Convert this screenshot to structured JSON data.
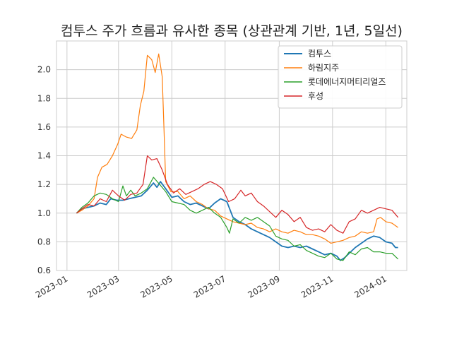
{
  "chart_data": {
    "type": "line",
    "title": "컴투스 주가 흐름과 유사한 종목 (상관관계 기반, 1년, 5일선)",
    "xlabel": "",
    "ylabel": "",
    "x_domain": [
      "2022-12-20",
      "2024-01-25"
    ],
    "ylim": [
      0.6,
      2.2
    ],
    "yticks": [
      0.6,
      0.8,
      1.0,
      1.2,
      1.4,
      1.6,
      1.8,
      2.0
    ],
    "ytick_labels": [
      "0.6",
      "0.8",
      "1.0",
      "1.2",
      "1.4",
      "1.6",
      "1.8",
      "2.0"
    ],
    "xticks": [
      "2023-01-01",
      "2023-03-01",
      "2023-05-01",
      "2023-07-01",
      "2023-09-01",
      "2023-11-01",
      "2024-01-01"
    ],
    "xtick_labels": [
      "2023-01",
      "2023-03",
      "2023-05",
      "2023-07",
      "2023-09",
      "2023-11",
      "2024-01"
    ],
    "grid": true,
    "legend_position": "top-right",
    "series": [
      {
        "name": "컴투스",
        "color": "#1f77b4",
        "points": [
          [
            "2023-01-12",
            1.0
          ],
          [
            "2023-01-18",
            1.03
          ],
          [
            "2023-01-25",
            1.04
          ],
          [
            "2023-02-01",
            1.05
          ],
          [
            "2023-02-08",
            1.07
          ],
          [
            "2023-02-15",
            1.06
          ],
          [
            "2023-02-20",
            1.1
          ],
          [
            "2023-02-27",
            1.09
          ],
          [
            "2023-03-06",
            1.09
          ],
          [
            "2023-03-13",
            1.1
          ],
          [
            "2023-03-20",
            1.11
          ],
          [
            "2023-03-27",
            1.12
          ],
          [
            "2023-04-03",
            1.16
          ],
          [
            "2023-04-10",
            1.21
          ],
          [
            "2023-04-14",
            1.18
          ],
          [
            "2023-04-18",
            1.22
          ],
          [
            "2023-04-24",
            1.17
          ],
          [
            "2023-05-01",
            1.11
          ],
          [
            "2023-05-08",
            1.12
          ],
          [
            "2023-05-15",
            1.08
          ],
          [
            "2023-05-22",
            1.06
          ],
          [
            "2023-05-29",
            1.07
          ],
          [
            "2023-06-05",
            1.05
          ],
          [
            "2023-06-12",
            1.03
          ],
          [
            "2023-06-19",
            1.07
          ],
          [
            "2023-06-26",
            1.1
          ],
          [
            "2023-07-03",
            1.08
          ],
          [
            "2023-07-10",
            0.97
          ],
          [
            "2023-07-17",
            0.94
          ],
          [
            "2023-07-24",
            0.92
          ],
          [
            "2023-07-31",
            0.89
          ],
          [
            "2023-08-07",
            0.87
          ],
          [
            "2023-08-14",
            0.85
          ],
          [
            "2023-08-21",
            0.83
          ],
          [
            "2023-08-28",
            0.8
          ],
          [
            "2023-09-04",
            0.77
          ],
          [
            "2023-09-11",
            0.76
          ],
          [
            "2023-09-18",
            0.77
          ],
          [
            "2023-09-25",
            0.76
          ],
          [
            "2023-10-02",
            0.77
          ],
          [
            "2023-10-09",
            0.75
          ],
          [
            "2023-10-16",
            0.73
          ],
          [
            "2023-10-23",
            0.71
          ],
          [
            "2023-10-30",
            0.72
          ],
          [
            "2023-11-06",
            0.7
          ],
          [
            "2023-11-10",
            0.67
          ],
          [
            "2023-11-15",
            0.69
          ],
          [
            "2023-11-20",
            0.72
          ],
          [
            "2023-11-27",
            0.76
          ],
          [
            "2023-12-04",
            0.79
          ],
          [
            "2023-12-11",
            0.82
          ],
          [
            "2023-12-18",
            0.84
          ],
          [
            "2023-12-25",
            0.83
          ],
          [
            "2024-01-01",
            0.8
          ],
          [
            "2024-01-08",
            0.79
          ],
          [
            "2024-01-12",
            0.76
          ],
          [
            "2024-01-15",
            0.76
          ]
        ]
      },
      {
        "name": "하림지주",
        "color": "#ff7f0e",
        "points": [
          [
            "2023-01-12",
            1.0
          ],
          [
            "2023-01-18",
            1.02
          ],
          [
            "2023-01-25",
            1.05
          ],
          [
            "2023-02-01",
            1.1
          ],
          [
            "2023-02-05",
            1.25
          ],
          [
            "2023-02-10",
            1.32
          ],
          [
            "2023-02-16",
            1.34
          ],
          [
            "2023-02-22",
            1.4
          ],
          [
            "2023-02-28",
            1.48
          ],
          [
            "2023-03-04",
            1.55
          ],
          [
            "2023-03-10",
            1.53
          ],
          [
            "2023-03-16",
            1.52
          ],
          [
            "2023-03-22",
            1.58
          ],
          [
            "2023-03-26",
            1.75
          ],
          [
            "2023-03-30",
            1.85
          ],
          [
            "2023-04-03",
            2.1
          ],
          [
            "2023-04-08",
            2.07
          ],
          [
            "2023-04-12",
            1.98
          ],
          [
            "2023-04-16",
            2.11
          ],
          [
            "2023-04-20",
            1.95
          ],
          [
            "2023-04-22",
            1.6
          ],
          [
            "2023-04-24",
            1.22
          ],
          [
            "2023-04-30",
            1.15
          ],
          [
            "2023-05-08",
            1.15
          ],
          [
            "2023-05-15",
            1.1
          ],
          [
            "2023-05-22",
            1.12
          ],
          [
            "2023-05-29",
            1.08
          ],
          [
            "2023-06-05",
            1.06
          ],
          [
            "2023-06-12",
            1.03
          ],
          [
            "2023-06-19",
            1.02
          ],
          [
            "2023-06-26",
            0.98
          ],
          [
            "2023-07-03",
            0.96
          ],
          [
            "2023-07-10",
            0.94
          ],
          [
            "2023-07-17",
            0.93
          ],
          [
            "2023-07-24",
            0.92
          ],
          [
            "2023-07-31",
            0.93
          ],
          [
            "2023-08-07",
            0.9
          ],
          [
            "2023-08-14",
            0.89
          ],
          [
            "2023-08-21",
            0.87
          ],
          [
            "2023-08-28",
            0.89
          ],
          [
            "2023-09-04",
            0.87
          ],
          [
            "2023-09-11",
            0.86
          ],
          [
            "2023-09-18",
            0.88
          ],
          [
            "2023-09-25",
            0.87
          ],
          [
            "2023-10-02",
            0.85
          ],
          [
            "2023-10-09",
            0.85
          ],
          [
            "2023-10-16",
            0.84
          ],
          [
            "2023-10-23",
            0.82
          ],
          [
            "2023-10-30",
            0.79
          ],
          [
            "2023-11-06",
            0.8
          ],
          [
            "2023-11-13",
            0.81
          ],
          [
            "2023-11-20",
            0.83
          ],
          [
            "2023-11-27",
            0.84
          ],
          [
            "2023-12-04",
            0.87
          ],
          [
            "2023-12-11",
            0.86
          ],
          [
            "2023-12-18",
            0.87
          ],
          [
            "2023-12-22",
            0.96
          ],
          [
            "2023-12-26",
            0.97
          ],
          [
            "2024-01-01",
            0.94
          ],
          [
            "2024-01-08",
            0.93
          ],
          [
            "2024-01-15",
            0.9
          ]
        ]
      },
      {
        "name": "롯데에너지머티리얼즈",
        "color": "#2ca02c",
        "points": [
          [
            "2023-01-12",
            1.0
          ],
          [
            "2023-01-18",
            1.04
          ],
          [
            "2023-01-25",
            1.07
          ],
          [
            "2023-02-01",
            1.12
          ],
          [
            "2023-02-08",
            1.14
          ],
          [
            "2023-02-15",
            1.13
          ],
          [
            "2023-02-22",
            1.1
          ],
          [
            "2023-03-01",
            1.08
          ],
          [
            "2023-03-06",
            1.19
          ],
          [
            "2023-03-10",
            1.12
          ],
          [
            "2023-03-15",
            1.16
          ],
          [
            "2023-03-20",
            1.12
          ],
          [
            "2023-03-27",
            1.14
          ],
          [
            "2023-04-03",
            1.17
          ],
          [
            "2023-04-10",
            1.25
          ],
          [
            "2023-04-17",
            1.2
          ],
          [
            "2023-04-24",
            1.15
          ],
          [
            "2023-05-01",
            1.08
          ],
          [
            "2023-05-08",
            1.07
          ],
          [
            "2023-05-15",
            1.06
          ],
          [
            "2023-05-22",
            1.02
          ],
          [
            "2023-05-29",
            1.0
          ],
          [
            "2023-06-05",
            1.02
          ],
          [
            "2023-06-12",
            1.04
          ],
          [
            "2023-06-19",
            1.0
          ],
          [
            "2023-06-26",
            0.97
          ],
          [
            "2023-07-03",
            0.9
          ],
          [
            "2023-07-06",
            0.86
          ],
          [
            "2023-07-10",
            0.96
          ],
          [
            "2023-07-17",
            0.93
          ],
          [
            "2023-07-24",
            0.97
          ],
          [
            "2023-07-31",
            0.95
          ],
          [
            "2023-08-07",
            0.97
          ],
          [
            "2023-08-14",
            0.94
          ],
          [
            "2023-08-21",
            0.91
          ],
          [
            "2023-08-28",
            0.84
          ],
          [
            "2023-09-04",
            0.82
          ],
          [
            "2023-09-11",
            0.81
          ],
          [
            "2023-09-18",
            0.77
          ],
          [
            "2023-09-25",
            0.78
          ],
          [
            "2023-10-02",
            0.74
          ],
          [
            "2023-10-09",
            0.72
          ],
          [
            "2023-10-16",
            0.7
          ],
          [
            "2023-10-23",
            0.69
          ],
          [
            "2023-10-30",
            0.72
          ],
          [
            "2023-11-06",
            0.68
          ],
          [
            "2023-11-13",
            0.67
          ],
          [
            "2023-11-20",
            0.73
          ],
          [
            "2023-11-27",
            0.71
          ],
          [
            "2023-12-04",
            0.75
          ],
          [
            "2023-12-11",
            0.76
          ],
          [
            "2023-12-18",
            0.73
          ],
          [
            "2023-12-25",
            0.73
          ],
          [
            "2024-01-01",
            0.72
          ],
          [
            "2024-01-08",
            0.72
          ],
          [
            "2024-01-15",
            0.68
          ]
        ]
      },
      {
        "name": "후성",
        "color": "#d62728",
        "points": [
          [
            "2023-01-12",
            1.0
          ],
          [
            "2023-01-18",
            1.03
          ],
          [
            "2023-01-25",
            1.06
          ],
          [
            "2023-02-01",
            1.05
          ],
          [
            "2023-02-08",
            1.1
          ],
          [
            "2023-02-15",
            1.08
          ],
          [
            "2023-02-22",
            1.16
          ],
          [
            "2023-03-01",
            1.12
          ],
          [
            "2023-03-08",
            1.09
          ],
          [
            "2023-03-15",
            1.13
          ],
          [
            "2023-03-22",
            1.14
          ],
          [
            "2023-03-29",
            1.2
          ],
          [
            "2023-04-03",
            1.4
          ],
          [
            "2023-04-08",
            1.37
          ],
          [
            "2023-04-14",
            1.38
          ],
          [
            "2023-04-20",
            1.3
          ],
          [
            "2023-04-26",
            1.2
          ],
          [
            "2023-05-03",
            1.14
          ],
          [
            "2023-05-10",
            1.17
          ],
          [
            "2023-05-17",
            1.13
          ],
          [
            "2023-05-24",
            1.15
          ],
          [
            "2023-05-31",
            1.17
          ],
          [
            "2023-06-07",
            1.2
          ],
          [
            "2023-06-14",
            1.22
          ],
          [
            "2023-06-21",
            1.2
          ],
          [
            "2023-06-28",
            1.17
          ],
          [
            "2023-07-05",
            1.08
          ],
          [
            "2023-07-12",
            1.1
          ],
          [
            "2023-07-19",
            1.16
          ],
          [
            "2023-07-24",
            1.12
          ],
          [
            "2023-07-31",
            1.14
          ],
          [
            "2023-08-07",
            1.08
          ],
          [
            "2023-08-14",
            1.05
          ],
          [
            "2023-08-21",
            1.01
          ],
          [
            "2023-08-28",
            0.97
          ],
          [
            "2023-09-04",
            1.02
          ],
          [
            "2023-09-11",
            0.99
          ],
          [
            "2023-09-18",
            0.94
          ],
          [
            "2023-09-25",
            0.97
          ],
          [
            "2023-10-02",
            0.9
          ],
          [
            "2023-10-09",
            0.88
          ],
          [
            "2023-10-16",
            0.89
          ],
          [
            "2023-10-23",
            0.87
          ],
          [
            "2023-10-30",
            0.92
          ],
          [
            "2023-11-06",
            0.88
          ],
          [
            "2023-11-13",
            0.86
          ],
          [
            "2023-11-20",
            0.94
          ],
          [
            "2023-11-27",
            0.96
          ],
          [
            "2023-12-04",
            1.02
          ],
          [
            "2023-12-11",
            1.0
          ],
          [
            "2023-12-18",
            1.02
          ],
          [
            "2023-12-25",
            1.04
          ],
          [
            "2024-01-01",
            1.03
          ],
          [
            "2024-01-08",
            1.02
          ],
          [
            "2024-01-15",
            0.97
          ]
        ]
      }
    ]
  }
}
